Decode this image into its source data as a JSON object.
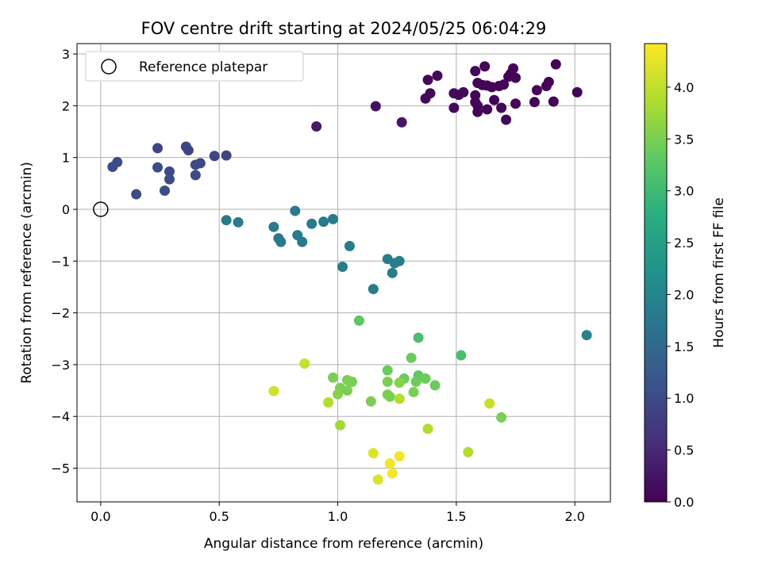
{
  "chart_data": {
    "type": "scatter",
    "title": "FOV centre drift starting at 2024/05/25 06:04:29",
    "xlabel": "Angular distance from reference (arcmin)",
    "ylabel": "Rotation from reference (arcmin)",
    "xlim": [
      -0.1,
      2.15
    ],
    "ylim": [
      -5.65,
      3.2
    ],
    "xticks": [
      "0.0",
      "0.5",
      "1.0",
      "1.5",
      "2.0"
    ],
    "xtick_values": [
      0,
      0.5,
      1,
      1.5,
      2
    ],
    "yticks": [
      "−5",
      "−4",
      "−3",
      "−2",
      "−1",
      "0",
      "1",
      "2",
      "3"
    ],
    "ytick_values": [
      -5,
      -4,
      -3,
      -2,
      -1,
      0,
      1,
      2,
      3
    ],
    "grid": true,
    "legend": {
      "placement": "top-left",
      "label": "Reference platepar"
    },
    "reference_point": {
      "x": 0,
      "y": 0
    },
    "colorbar": {
      "label": "Hours from first FF file",
      "colormap": "viridis",
      "range": [
        0,
        4.42
      ],
      "ticks": [
        "0.0",
        "0.5",
        "1.0",
        "1.5",
        "2.0",
        "2.5",
        "3.0",
        "3.5",
        "4.0"
      ],
      "tick_values": [
        0,
        0.5,
        1,
        1.5,
        2,
        2.5,
        3,
        3.5,
        4
      ]
    },
    "points": [
      {
        "x": 1.92,
        "y": 2.8,
        "t": 0.05
      },
      {
        "x": 1.62,
        "y": 2.76,
        "t": 0.05
      },
      {
        "x": 1.74,
        "y": 2.72,
        "t": 0.05
      },
      {
        "x": 1.58,
        "y": 2.67,
        "t": 0.05
      },
      {
        "x": 1.73,
        "y": 2.62,
        "t": 0.05
      },
      {
        "x": 1.42,
        "y": 2.58,
        "t": 0.1
      },
      {
        "x": 1.72,
        "y": 2.56,
        "t": 0.05
      },
      {
        "x": 1.75,
        "y": 2.54,
        "t": 0.05
      },
      {
        "x": 1.38,
        "y": 2.5,
        "t": 0.1
      },
      {
        "x": 1.89,
        "y": 2.46,
        "t": 0.05
      },
      {
        "x": 1.59,
        "y": 2.44,
        "t": 0.05
      },
      {
        "x": 1.68,
        "y": 2.38,
        "t": 0.05
      },
      {
        "x": 1.63,
        "y": 2.39,
        "t": 0.05
      },
      {
        "x": 1.61,
        "y": 2.4,
        "t": 0.05
      },
      {
        "x": 1.7,
        "y": 2.41,
        "t": 0.05
      },
      {
        "x": 1.88,
        "y": 2.38,
        "t": 0.05
      },
      {
        "x": 1.65,
        "y": 2.36,
        "t": 0.05
      },
      {
        "x": 1.84,
        "y": 2.3,
        "t": 0.05
      },
      {
        "x": 1.53,
        "y": 2.26,
        "t": 0.1
      },
      {
        "x": 1.49,
        "y": 2.24,
        "t": 0.1
      },
      {
        "x": 1.39,
        "y": 2.24,
        "t": 0.1
      },
      {
        "x": 2.01,
        "y": 2.26,
        "t": 0.05
      },
      {
        "x": 1.51,
        "y": 2.21,
        "t": 0.1
      },
      {
        "x": 1.58,
        "y": 2.2,
        "t": 0.05
      },
      {
        "x": 1.37,
        "y": 2.14,
        "t": 0.1
      },
      {
        "x": 1.66,
        "y": 2.11,
        "t": 0.05
      },
      {
        "x": 1.58,
        "y": 2.07,
        "t": 0.05
      },
      {
        "x": 1.83,
        "y": 2.07,
        "t": 0.05
      },
      {
        "x": 1.91,
        "y": 2.08,
        "t": 0.05
      },
      {
        "x": 1.75,
        "y": 2.04,
        "t": 0.05
      },
      {
        "x": 1.16,
        "y": 1.99,
        "t": 0.2
      },
      {
        "x": 1.59,
        "y": 2.0,
        "t": 0.05
      },
      {
        "x": 1.49,
        "y": 1.96,
        "t": 0.1
      },
      {
        "x": 1.69,
        "y": 1.96,
        "t": 0.05
      },
      {
        "x": 1.63,
        "y": 1.93,
        "t": 0.05
      },
      {
        "x": 1.59,
        "y": 1.88,
        "t": 0.05
      },
      {
        "x": 1.71,
        "y": 1.73,
        "t": 0.05
      },
      {
        "x": 1.27,
        "y": 1.68,
        "t": 0.25
      },
      {
        "x": 0.91,
        "y": 1.6,
        "t": 0.3
      },
      {
        "x": 0.36,
        "y": 1.21,
        "t": 0.9
      },
      {
        "x": 0.24,
        "y": 1.18,
        "t": 0.9
      },
      {
        "x": 0.37,
        "y": 1.14,
        "t": 0.9
      },
      {
        "x": 0.48,
        "y": 1.03,
        "t": 0.9
      },
      {
        "x": 0.53,
        "y": 1.04,
        "t": 0.9
      },
      {
        "x": 0.07,
        "y": 0.91,
        "t": 1.0
      },
      {
        "x": 0.42,
        "y": 0.89,
        "t": 0.95
      },
      {
        "x": 0.4,
        "y": 0.86,
        "t": 0.95
      },
      {
        "x": 0.05,
        "y": 0.82,
        "t": 1.0
      },
      {
        "x": 0.24,
        "y": 0.81,
        "t": 1.0
      },
      {
        "x": 0.29,
        "y": 0.73,
        "t": 1.0
      },
      {
        "x": 0.4,
        "y": 0.66,
        "t": 1.0
      },
      {
        "x": 0.29,
        "y": 0.58,
        "t": 1.0
      },
      {
        "x": 0.27,
        "y": 0.36,
        "t": 1.05
      },
      {
        "x": 0.15,
        "y": 0.29,
        "t": 1.05
      },
      {
        "x": 0.82,
        "y": -0.03,
        "t": 1.8
      },
      {
        "x": 0.98,
        "y": -0.19,
        "t": 1.8
      },
      {
        "x": 0.53,
        "y": -0.21,
        "t": 1.8
      },
      {
        "x": 0.94,
        "y": -0.24,
        "t": 1.8
      },
      {
        "x": 0.58,
        "y": -0.25,
        "t": 1.8
      },
      {
        "x": 0.89,
        "y": -0.28,
        "t": 1.8
      },
      {
        "x": 0.73,
        "y": -0.34,
        "t": 1.8
      },
      {
        "x": 0.83,
        "y": -0.5,
        "t": 1.8
      },
      {
        "x": 0.75,
        "y": -0.56,
        "t": 1.8
      },
      {
        "x": 0.76,
        "y": -0.63,
        "t": 1.8
      },
      {
        "x": 0.85,
        "y": -0.63,
        "t": 1.8
      },
      {
        "x": 1.05,
        "y": -0.71,
        "t": 1.85
      },
      {
        "x": 1.21,
        "y": -0.96,
        "t": 1.85
      },
      {
        "x": 1.26,
        "y": -1.0,
        "t": 1.85
      },
      {
        "x": 1.24,
        "y": -1.04,
        "t": 1.85
      },
      {
        "x": 1.02,
        "y": -1.11,
        "t": 1.85
      },
      {
        "x": 1.23,
        "y": -1.23,
        "t": 1.85
      },
      {
        "x": 1.15,
        "y": -1.54,
        "t": 1.85
      },
      {
        "x": 2.05,
        "y": -2.43,
        "t": 1.95
      },
      {
        "x": 1.09,
        "y": -2.15,
        "t": 3.3
      },
      {
        "x": 1.34,
        "y": -2.48,
        "t": 3.1
      },
      {
        "x": 1.52,
        "y": -2.82,
        "t": 3.1
      },
      {
        "x": 1.31,
        "y": -2.87,
        "t": 3.4
      },
      {
        "x": 0.86,
        "y": -2.98,
        "t": 4.05
      },
      {
        "x": 1.21,
        "y": -3.11,
        "t": 3.4
      },
      {
        "x": 1.34,
        "y": -3.21,
        "t": 3.3
      },
      {
        "x": 0.98,
        "y": -3.25,
        "t": 3.5
      },
      {
        "x": 1.28,
        "y": -3.27,
        "t": 3.4
      },
      {
        "x": 1.37,
        "y": -3.27,
        "t": 3.4
      },
      {
        "x": 1.21,
        "y": -3.33,
        "t": 3.5
      },
      {
        "x": 1.04,
        "y": -3.3,
        "t": 3.5
      },
      {
        "x": 1.06,
        "y": -3.33,
        "t": 3.5
      },
      {
        "x": 1.33,
        "y": -3.33,
        "t": 3.4
      },
      {
        "x": 1.26,
        "y": -3.35,
        "t": 3.6
      },
      {
        "x": 1.01,
        "y": -3.45,
        "t": 3.5
      },
      {
        "x": 1.41,
        "y": -3.4,
        "t": 3.4
      },
      {
        "x": 1.04,
        "y": -3.5,
        "t": 3.5
      },
      {
        "x": 0.73,
        "y": -3.51,
        "t": 4.1
      },
      {
        "x": 1.32,
        "y": -3.53,
        "t": 3.5
      },
      {
        "x": 1.0,
        "y": -3.57,
        "t": 3.6
      },
      {
        "x": 1.21,
        "y": -3.58,
        "t": 3.5
      },
      {
        "x": 1.22,
        "y": -3.62,
        "t": 3.5
      },
      {
        "x": 1.26,
        "y": -3.66,
        "t": 3.9
      },
      {
        "x": 1.14,
        "y": -3.71,
        "t": 3.5
      },
      {
        "x": 0.96,
        "y": -3.73,
        "t": 3.9
      },
      {
        "x": 1.64,
        "y": -3.75,
        "t": 4.05
      },
      {
        "x": 1.69,
        "y": -4.02,
        "t": 3.5
      },
      {
        "x": 1.01,
        "y": -4.17,
        "t": 3.8
      },
      {
        "x": 1.38,
        "y": -4.24,
        "t": 3.9
      },
      {
        "x": 1.55,
        "y": -4.69,
        "t": 3.9
      },
      {
        "x": 1.15,
        "y": -4.71,
        "t": 4.2
      },
      {
        "x": 1.26,
        "y": -4.77,
        "t": 4.35
      },
      {
        "x": 1.22,
        "y": -4.91,
        "t": 4.35
      },
      {
        "x": 1.23,
        "y": -5.1,
        "t": 4.35
      },
      {
        "x": 1.17,
        "y": -5.22,
        "t": 4.2
      }
    ]
  }
}
